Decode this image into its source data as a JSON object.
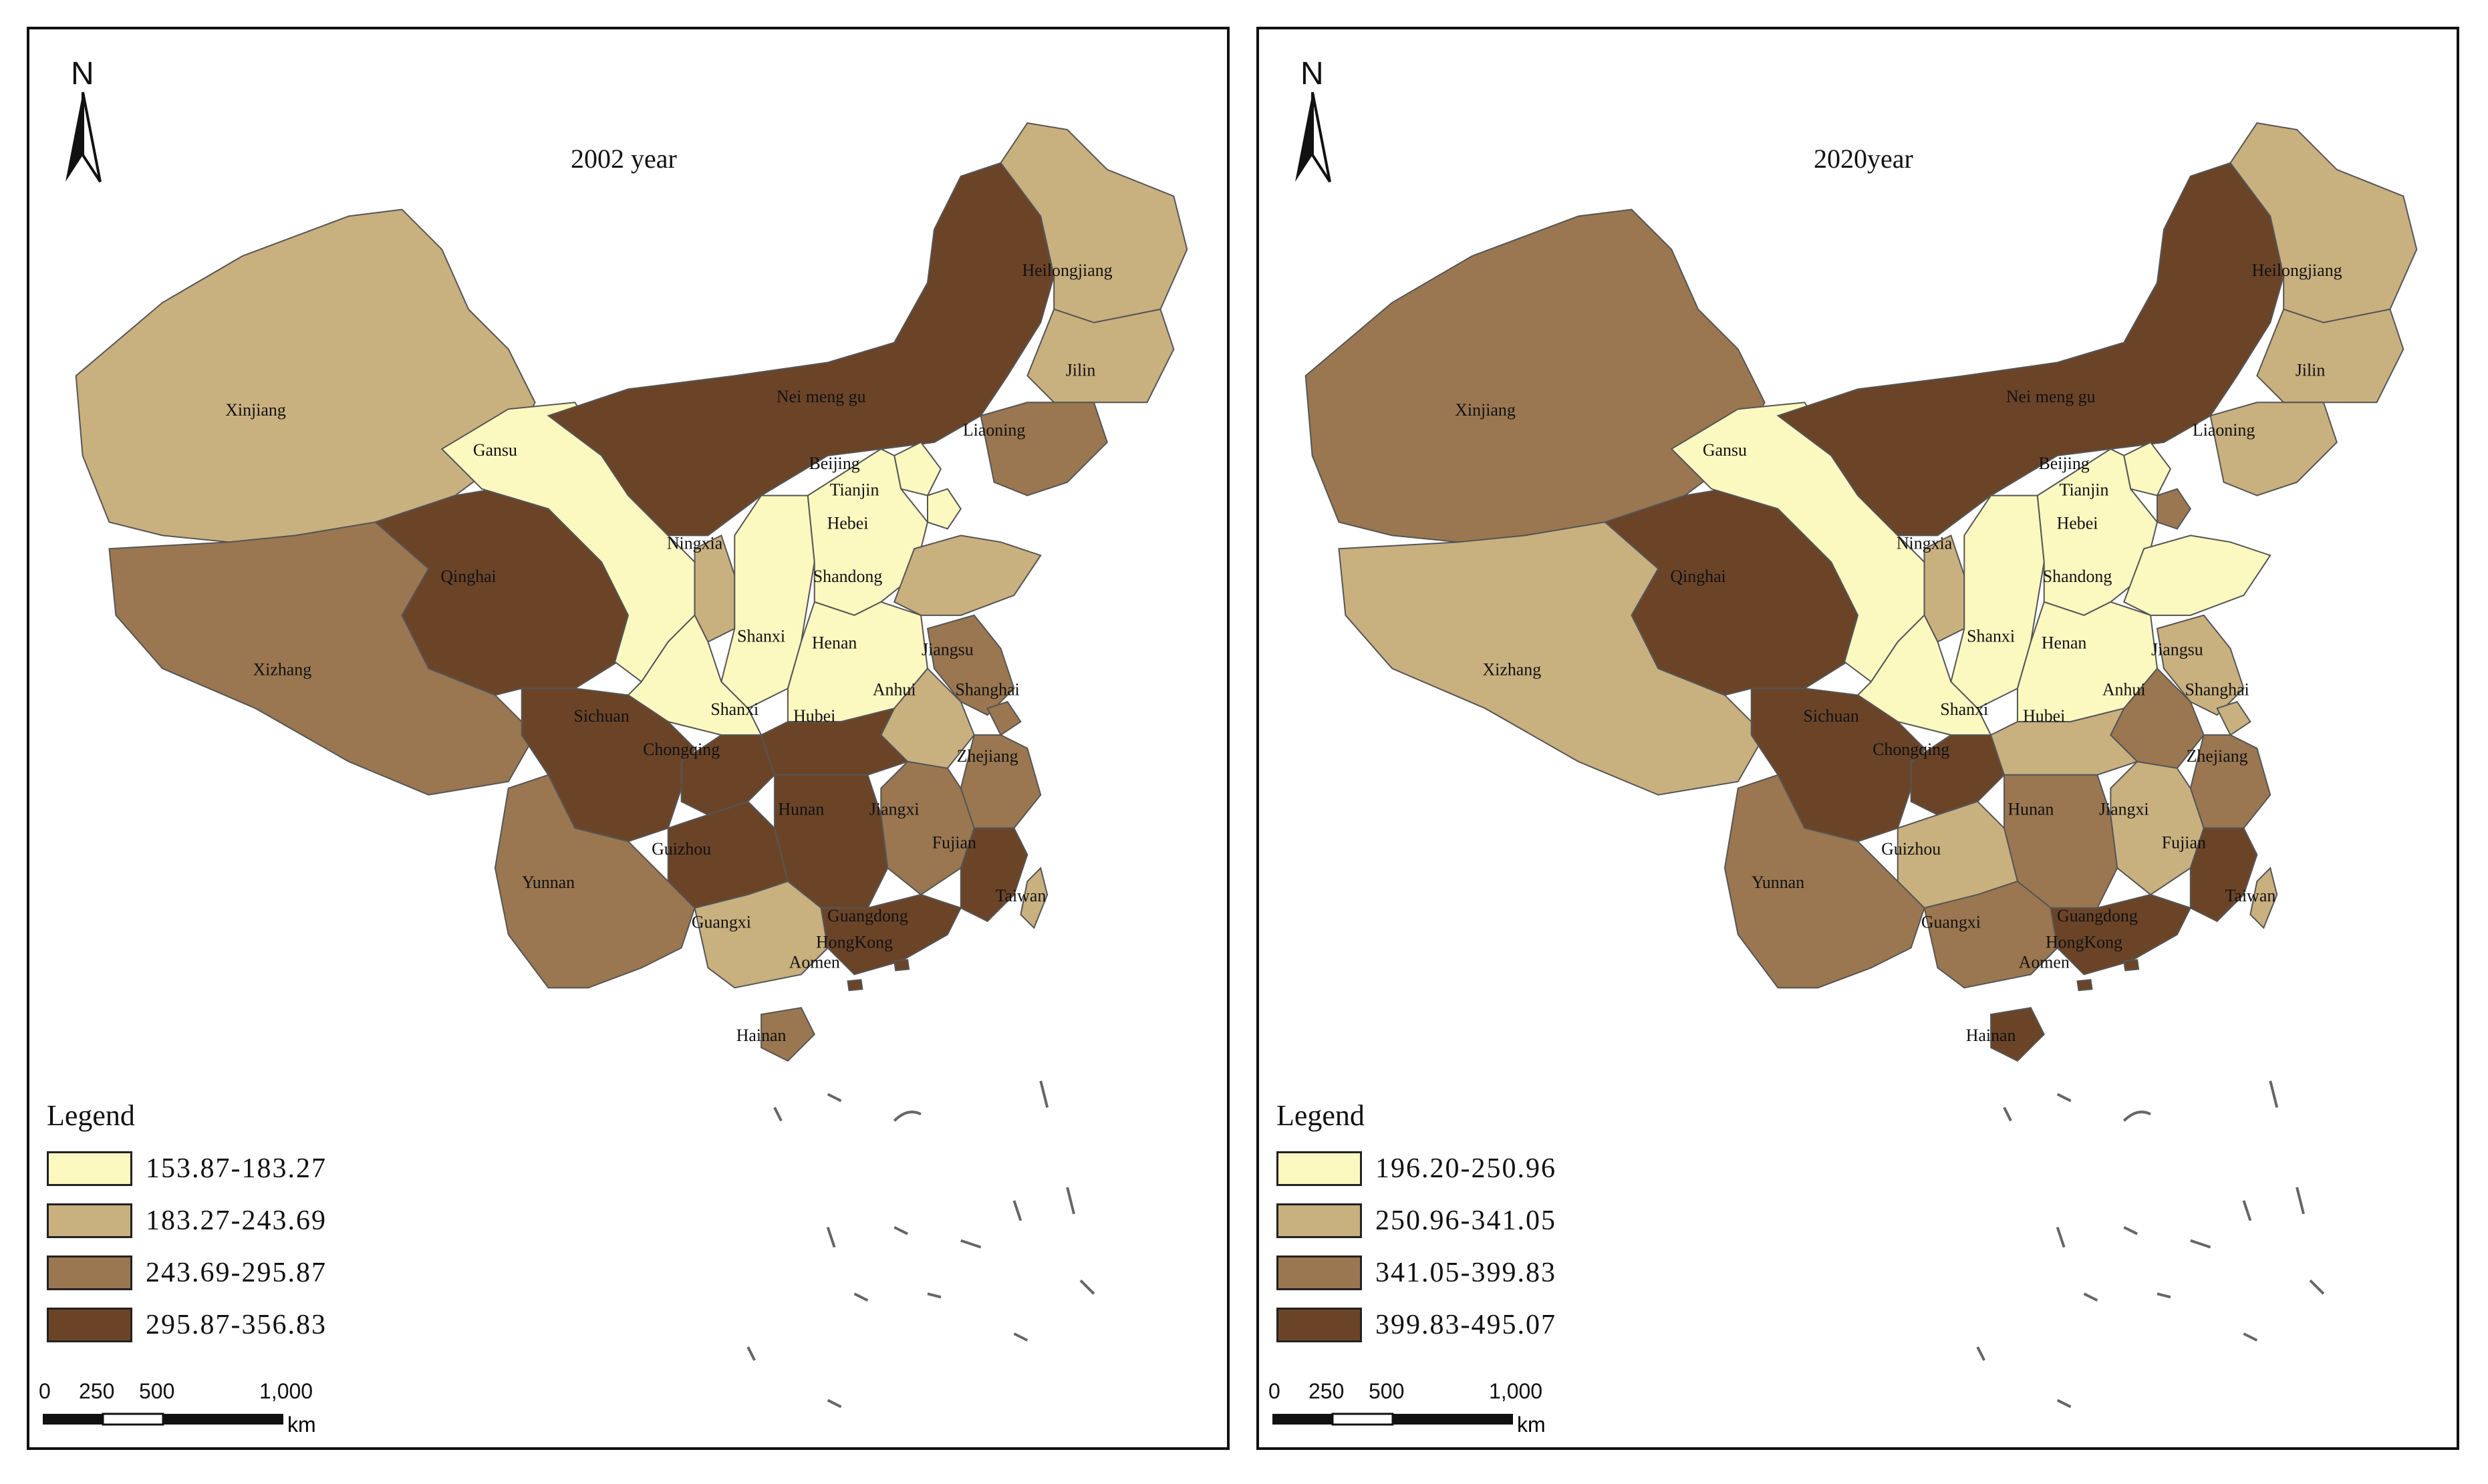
{
  "panels": [
    {
      "title": "2002 year",
      "legend": {
        "title": "Legend",
        "classes": [
          {
            "label": "153.87-183.27",
            "color": "#fbf8c0"
          },
          {
            "label": "183.27-243.69",
            "color": "#c9b07f"
          },
          {
            "label": "243.69-295.87",
            "color": "#9a7750"
          },
          {
            "label": "295.87-356.83",
            "color": "#6b4428"
          }
        ]
      },
      "provinces": [
        {
          "name": "Xinjiang",
          "class": 1
        },
        {
          "name": "Xizhang",
          "class": 2
        },
        {
          "name": "Qinghai",
          "class": 3
        },
        {
          "name": "Gansu",
          "class": 0
        },
        {
          "name": "Nei meng gu",
          "class": 3
        },
        {
          "name": "Heilongjiang",
          "class": 1
        },
        {
          "name": "Jilin",
          "class": 1
        },
        {
          "name": "Liaoning",
          "class": 2
        },
        {
          "name": "Ningxia",
          "class": 1
        },
        {
          "name": "Shanxi",
          "class": 0
        },
        {
          "name": "Shanxi",
          "class": 0
        },
        {
          "name": "Beijing",
          "class": 0
        },
        {
          "name": "Tianjin",
          "class": 0
        },
        {
          "name": "Hebei",
          "class": 0
        },
        {
          "name": "Shandong",
          "class": 1
        },
        {
          "name": "Henan",
          "class": 0
        },
        {
          "name": "Jiangsu",
          "class": 2
        },
        {
          "name": "Anhui",
          "class": 1
        },
        {
          "name": "Shanghai",
          "class": 2
        },
        {
          "name": "Sichuan",
          "class": 3
        },
        {
          "name": "Chongqing",
          "class": 3
        },
        {
          "name": "Hubei",
          "class": 3
        },
        {
          "name": "Zhejiang",
          "class": 2
        },
        {
          "name": "Hunan",
          "class": 3
        },
        {
          "name": "Jiangxi",
          "class": 2
        },
        {
          "name": "Guizhou",
          "class": 3
        },
        {
          "name": "Fujian",
          "class": 3
        },
        {
          "name": "Yunnan",
          "class": 2
        },
        {
          "name": "Guangxi",
          "class": 1
        },
        {
          "name": "Guangdong",
          "class": 3
        },
        {
          "name": "Taiwan",
          "class": 1
        },
        {
          "name": "HongKong",
          "class": 3
        },
        {
          "name": "Aomen",
          "class": 3
        },
        {
          "name": "Hainan",
          "class": 2
        }
      ]
    },
    {
      "title": "2020year",
      "legend": {
        "title": "Legend",
        "classes": [
          {
            "label": "196.20-250.96",
            "color": "#fbf8c0"
          },
          {
            "label": "250.96-341.05",
            "color": "#c9b07f"
          },
          {
            "label": "341.05-399.83",
            "color": "#9a7750"
          },
          {
            "label": "399.83-495.07",
            "color": "#6b4428"
          }
        ]
      },
      "provinces": [
        {
          "name": "Xinjiang",
          "class": 2
        },
        {
          "name": "Xizhang",
          "class": 1
        },
        {
          "name": "Qinghai",
          "class": 3
        },
        {
          "name": "Gansu",
          "class": 0
        },
        {
          "name": "Nei meng gu",
          "class": 3
        },
        {
          "name": "Heilongjiang",
          "class": 1
        },
        {
          "name": "Jilin",
          "class": 1
        },
        {
          "name": "Liaoning",
          "class": 1
        },
        {
          "name": "Ningxia",
          "class": 1
        },
        {
          "name": "Shanxi",
          "class": 0
        },
        {
          "name": "Shanxi",
          "class": 0
        },
        {
          "name": "Beijing",
          "class": 0
        },
        {
          "name": "Tianjin",
          "class": 2
        },
        {
          "name": "Hebei",
          "class": 0
        },
        {
          "name": "Shandong",
          "class": 0
        },
        {
          "name": "Henan",
          "class": 0
        },
        {
          "name": "Jiangsu",
          "class": 1
        },
        {
          "name": "Anhui",
          "class": 2
        },
        {
          "name": "Shanghai",
          "class": 1
        },
        {
          "name": "Sichuan",
          "class": 3
        },
        {
          "name": "Chongqing",
          "class": 3
        },
        {
          "name": "Hubei",
          "class": 1
        },
        {
          "name": "Zhejiang",
          "class": 2
        },
        {
          "name": "Hunan",
          "class": 2
        },
        {
          "name": "Jiangxi",
          "class": 1
        },
        {
          "name": "Guizhou",
          "class": 1
        },
        {
          "name": "Fujian",
          "class": 3
        },
        {
          "name": "Yunnan",
          "class": 2
        },
        {
          "name": "Guangxi",
          "class": 2
        },
        {
          "name": "Guangdong",
          "class": 3
        },
        {
          "name": "Taiwan",
          "class": 1
        },
        {
          "name": "HongKong",
          "class": 3
        },
        {
          "name": "Aomen",
          "class": 3
        },
        {
          "name": "Hainan",
          "class": 3
        }
      ]
    }
  ],
  "north_label": "N",
  "scale": {
    "ticks": [
      "0",
      "250",
      "500",
      "1,000"
    ],
    "unit": "km"
  }
}
